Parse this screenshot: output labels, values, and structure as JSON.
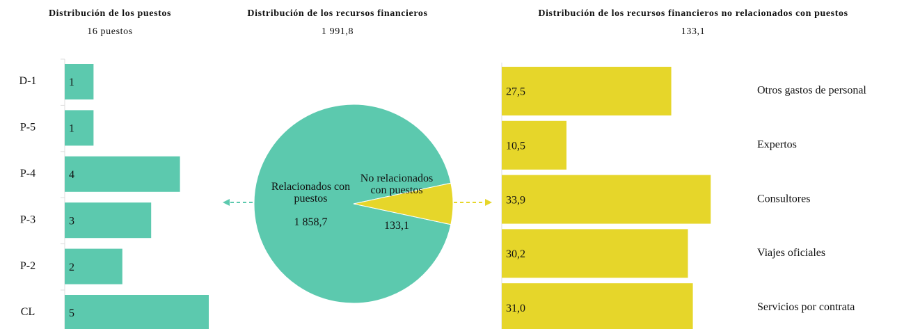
{
  "chart_data": [
    {
      "type": "barh",
      "title": "Distribución de los puestos",
      "subtitle": "16 puestos",
      "categories": [
        "D-1",
        "P-5",
        "P-4",
        "P-3",
        "P-2",
        "CL"
      ],
      "values": [
        1,
        1,
        4,
        3,
        2,
        5
      ],
      "color": "#5cc9ae",
      "xlim": [
        0,
        5
      ]
    },
    {
      "type": "pie",
      "title": "Distribución de los recursos financieros",
      "subtitle": "1 991,8",
      "categories": [
        "Relacionados con puestos",
        "No relacionados con puestos"
      ],
      "values": [
        1858.7,
        133.1
      ],
      "value_labels": [
        "1 858,7",
        "133,1"
      ],
      "colors": [
        "#5cc9ae",
        "#e6d62a"
      ]
    },
    {
      "type": "barh",
      "title": "Distribución de los recursos financieros no relacionados con puestos",
      "subtitle": "133,1",
      "categories": [
        "Otros gastos de personal",
        "Expertos",
        "Consultores",
        "Viajes oficiales",
        "Servicios por contrata"
      ],
      "values": [
        27.5,
        10.5,
        33.9,
        30.2,
        31.0
      ],
      "value_labels": [
        "27,5",
        "10,5",
        "33,9",
        "30,2",
        "31,0"
      ],
      "color": "#e6d62a",
      "xlim": [
        0,
        35
      ]
    }
  ]
}
